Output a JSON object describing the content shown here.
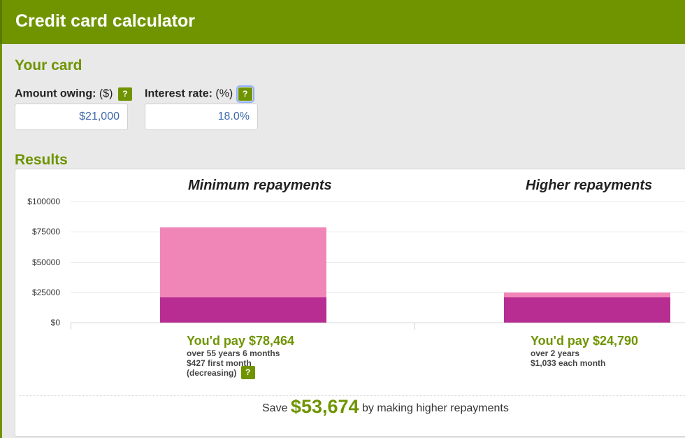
{
  "header": {
    "title": "Credit card calculator"
  },
  "card": {
    "title": "Your card",
    "amount_label": "Amount owing:",
    "amount_unit": "($)",
    "amount_value": "$21,000",
    "rate_label": "Interest rate:",
    "rate_unit": "(%)",
    "rate_value": "18.0%",
    "help_glyph": "?"
  },
  "results": {
    "title": "Results",
    "minimum": {
      "title": "Minimum repayments",
      "pay": "You'd pay $78,464",
      "line1": "over 55 years 6 months",
      "line2": "$427 first month",
      "line3": "(decreasing)"
    },
    "higher": {
      "title": "Higher repayments",
      "pay": "You'd pay $24,790",
      "line1": "over 2 years",
      "line2": "$1,033 each month"
    },
    "save_prefix": "Save",
    "save_amount": "$53,674",
    "save_suffix": "by making higher repayments"
  },
  "chart_data": {
    "type": "bar",
    "categories": [
      "Minimum repayments",
      "Higher repayments"
    ],
    "series": [
      {
        "values": [
          21000,
          21000
        ],
        "color": "#b82d92"
      },
      {
        "values": [
          57464,
          3790
        ],
        "color": "#f086b7"
      }
    ],
    "stacked": true,
    "ylim": [
      0,
      100000
    ],
    "yticks": [
      "$100000",
      "$75000",
      "$50000",
      "$25000",
      "$0"
    ],
    "ytick_values": [
      100000,
      75000,
      50000,
      25000,
      0
    ],
    "grid": true
  },
  "colors": {
    "brand": "#6f9400",
    "principal": "#b82d92",
    "interest": "#f086b7"
  }
}
